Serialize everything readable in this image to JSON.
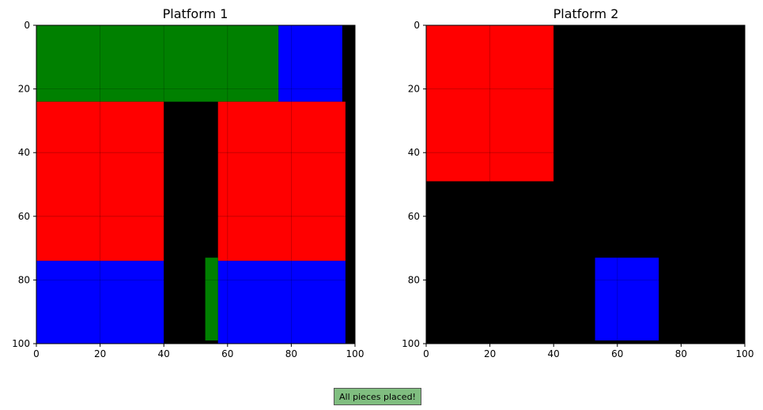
{
  "chart_data": [
    {
      "type": "heatmap",
      "title": "Platform 1",
      "xlim": [
        0,
        100
      ],
      "ylim": [
        100,
        0
      ],
      "y_inverted": true,
      "xticks": [
        0,
        20,
        40,
        60,
        80,
        100
      ],
      "yticks": [
        0,
        20,
        40,
        60,
        80,
        100
      ],
      "grid": true,
      "background": "#000000",
      "pieces": [
        {
          "color": "#008000",
          "x0": 0,
          "x1": 76,
          "y0": 0,
          "y1": 24
        },
        {
          "color": "#0000ff",
          "x0": 76,
          "x1": 96,
          "y0": 0,
          "y1": 24
        },
        {
          "color": "#ff0000",
          "x0": 0,
          "x1": 40,
          "y0": 24,
          "y1": 74
        },
        {
          "color": "#ff0000",
          "x0": 57,
          "x1": 97,
          "y0": 24,
          "y1": 74
        },
        {
          "color": "#0000ff",
          "x0": 0,
          "x1": 40,
          "y0": 74,
          "y1": 100
        },
        {
          "color": "#0000ff",
          "x0": 57,
          "x1": 97,
          "y0": 74,
          "y1": 100
        },
        {
          "color": "#008000",
          "x0": 53,
          "x1": 57,
          "y0": 73,
          "y1": 99
        }
      ]
    },
    {
      "type": "heatmap",
      "title": "Platform 2",
      "xlim": [
        0,
        100
      ],
      "ylim": [
        100,
        0
      ],
      "y_inverted": true,
      "xticks": [
        0,
        20,
        40,
        60,
        80,
        100
      ],
      "yticks": [
        0,
        20,
        40,
        60,
        80,
        100
      ],
      "grid": true,
      "background": "#000000",
      "pieces": [
        {
          "color": "#ff0000",
          "x0": 0,
          "x1": 40,
          "y0": 0,
          "y1": 49
        },
        {
          "color": "#0000ff",
          "x0": 53,
          "x1": 73,
          "y0": 73,
          "y1": 99
        }
      ]
    }
  ],
  "status": {
    "message": "All pieces placed!",
    "color": "#80be80"
  }
}
